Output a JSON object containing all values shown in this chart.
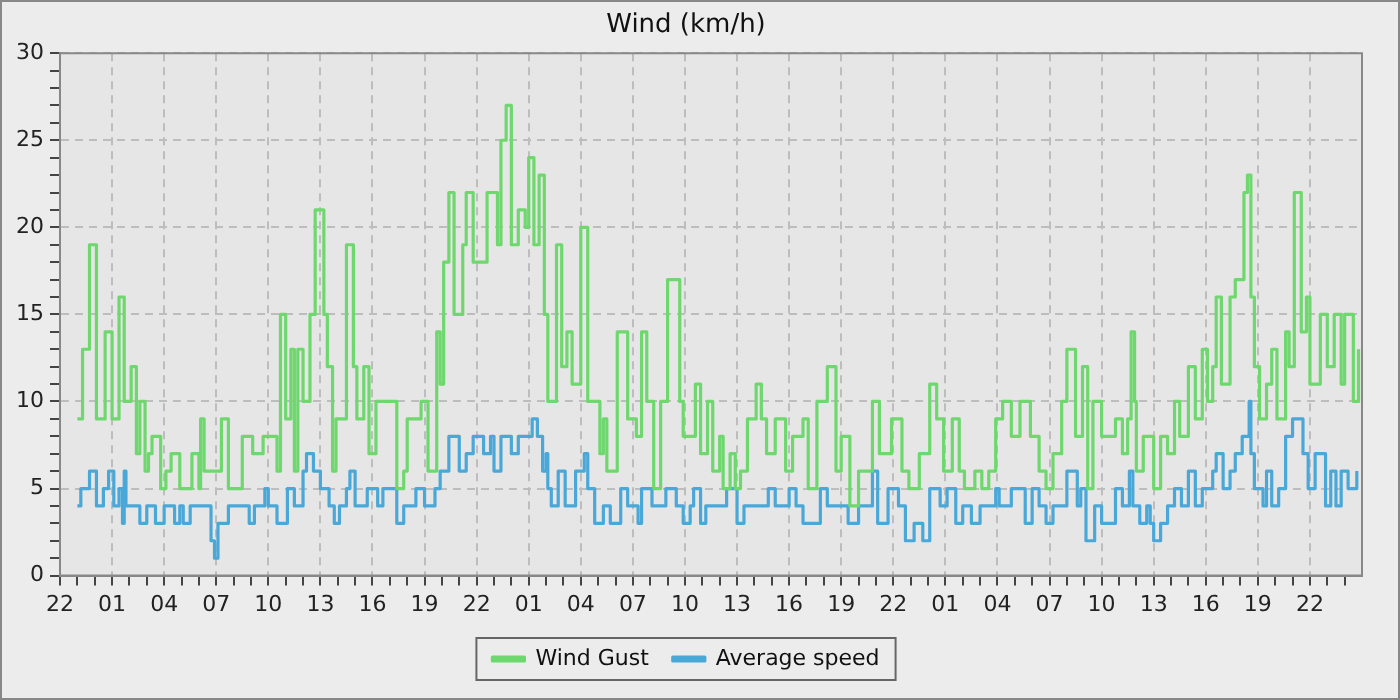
{
  "chart_data": {
    "type": "step",
    "title": "Wind (km/h)",
    "xlim": [
      "--01-01T22:00",
      "--01-05T01:00"
    ],
    "xticks": [
      {
        "value": "--01-01T22:00",
        "label": "22"
      },
      {
        "value": "--01-01T23:00",
        "label": null
      },
      {
        "value": "--01-02T00:00",
        "label": null
      },
      {
        "value": "--01-02T01:00",
        "label": "01"
      },
      {
        "value": "--01-02T02:00",
        "label": null
      },
      {
        "value": "--01-02T03:00",
        "label": null
      },
      {
        "value": "--01-02T04:00",
        "label": "04"
      },
      {
        "value": "--01-02T05:00",
        "label": null
      },
      {
        "value": "--01-02T06:00",
        "label": null
      },
      {
        "value": "--01-02T07:00",
        "label": "07"
      },
      {
        "value": "--01-02T08:00",
        "label": null
      },
      {
        "value": "--01-02T09:00",
        "label": null
      },
      {
        "value": "--01-02T10:00",
        "label": "10"
      },
      {
        "value": "--01-02T11:00",
        "label": null
      },
      {
        "value": "--01-02T12:00",
        "label": null
      },
      {
        "value": "--01-02T13:00",
        "label": "13"
      },
      {
        "value": "--01-02T14:00",
        "label": null
      },
      {
        "value": "--01-02T15:00",
        "label": null
      },
      {
        "value": "--01-02T16:00",
        "label": "16"
      },
      {
        "value": "--01-02T17:00",
        "label": null
      },
      {
        "value": "--01-02T18:00",
        "label": null
      },
      {
        "value": "--01-02T19:00",
        "label": "19"
      },
      {
        "value": "--01-02T20:00",
        "label": null
      },
      {
        "value": "--01-02T21:00",
        "label": null
      },
      {
        "value": "--01-02T22:00",
        "label": "22"
      },
      {
        "value": "--01-02T23:00",
        "label": null
      },
      {
        "value": "--01-03T00:00",
        "label": null
      },
      {
        "value": "--01-03T01:00",
        "label": "01"
      },
      {
        "value": "--01-03T02:00",
        "label": null
      },
      {
        "value": "--01-03T03:00",
        "label": null
      },
      {
        "value": "--01-03T04:00",
        "label": "04"
      },
      {
        "value": "--01-03T05:00",
        "label": null
      },
      {
        "value": "--01-03T06:00",
        "label": null
      },
      {
        "value": "--01-03T07:00",
        "label": "07"
      },
      {
        "value": "--01-03T08:00",
        "label": null
      },
      {
        "value": "--01-03T09:00",
        "label": null
      },
      {
        "value": "--01-03T10:00",
        "label": "10"
      },
      {
        "value": "--01-03T11:00",
        "label": null
      },
      {
        "value": "--01-03T12:00",
        "label": null
      },
      {
        "value": "--01-03T13:00",
        "label": "13"
      },
      {
        "value": "--01-03T14:00",
        "label": null
      },
      {
        "value": "--01-03T15:00",
        "label": null
      },
      {
        "value": "--01-03T16:00",
        "label": "16"
      },
      {
        "value": "--01-03T17:00",
        "label": null
      },
      {
        "value": "--01-03T18:00",
        "label": null
      },
      {
        "value": "--01-03T19:00",
        "label": "19"
      },
      {
        "value": "--01-03T20:00",
        "label": null
      },
      {
        "value": "--01-03T21:00",
        "label": null
      },
      {
        "value": "--01-03T22:00",
        "label": "22"
      },
      {
        "value": "--01-03T23:00",
        "label": null
      },
      {
        "value": "--01-04T00:00",
        "label": null
      },
      {
        "value": "--01-04T01:00",
        "label": "01"
      },
      {
        "value": "--01-04T02:00",
        "label": null
      },
      {
        "value": "--01-04T03:00",
        "label": null
      },
      {
        "value": "--01-04T04:00",
        "label": "04"
      },
      {
        "value": "--01-04T05:00",
        "label": null
      },
      {
        "value": "--01-04T06:00",
        "label": null
      },
      {
        "value": "--01-04T07:00",
        "label": "07"
      },
      {
        "value": "--01-04T08:00",
        "label": null
      },
      {
        "value": "--01-04T09:00",
        "label": null
      },
      {
        "value": "--01-04T10:00",
        "label": "10"
      },
      {
        "value": "--01-04T11:00",
        "label": null
      },
      {
        "value": "--01-04T12:00",
        "label": null
      },
      {
        "value": "--01-04T13:00",
        "label": "13"
      },
      {
        "value": "--01-04T14:00",
        "label": null
      },
      {
        "value": "--01-04T15:00",
        "label": null
      },
      {
        "value": "--01-04T16:00",
        "label": "16"
      },
      {
        "value": "--01-04T17:00",
        "label": null
      },
      {
        "value": "--01-04T18:00",
        "label": null
      },
      {
        "value": "--01-04T19:00",
        "label": "19"
      },
      {
        "value": "--01-04T20:00",
        "label": null
      },
      {
        "value": "--01-04T21:00",
        "label": null
      },
      {
        "value": "--01-04T22:00",
        "label": "22"
      },
      {
        "value": "--01-04T23:00",
        "label": null
      },
      {
        "value": "--01-05T00:00",
        "label": null
      }
    ],
    "ylim": [
      0,
      30
    ],
    "yticks": [
      0,
      {
        "value": 1,
        "label": null
      },
      {
        "value": 2,
        "label": null
      },
      {
        "value": 3,
        "label": null
      },
      {
        "value": 4,
        "label": null
      },
      5,
      {
        "value": 6,
        "label": null
      },
      {
        "value": 7,
        "label": null
      },
      {
        "value": 8,
        "label": null
      },
      {
        "value": 9,
        "label": null
      },
      10,
      {
        "value": 11,
        "label": null
      },
      {
        "value": 12,
        "label": null
      },
      {
        "value": 13,
        "label": null
      },
      {
        "value": 14,
        "label": null
      },
      15,
      {
        "value": 16,
        "label": null
      },
      {
        "value": 17,
        "label": null
      },
      {
        "value": 18,
        "label": null
      },
      {
        "value": 19,
        "label": null
      },
      20,
      {
        "value": 21,
        "label": null
      },
      {
        "value": 22,
        "label": null
      },
      {
        "value": 23,
        "label": null
      },
      {
        "value": 24,
        "label": null
      },
      25,
      {
        "value": 26,
        "label": null
      },
      {
        "value": 27,
        "label": null
      },
      {
        "value": 28,
        "label": null
      },
      {
        "value": 29,
        "label": null
      },
      30
    ],
    "grid": true,
    "legend": "bottom",
    "marker": "none",
    "line_style": "solid",
    "series": [
      {
        "name": "Wind Gust",
        "color": "#6ed86e",
        "x": [
          "--01-01T23:00",
          "--01-01T23:18",
          "--01-01T23:42",
          "--01-02T00:06",
          "--01-02T00:36",
          "--01-02T01:00",
          "--01-02T01:24",
          "--01-02T01:42",
          "--01-02T02:06",
          "--01-02T02:24",
          "--01-02T02:36",
          "--01-02T02:54",
          "--01-02T03:06",
          "--01-02T03:18",
          "--01-02T03:48",
          "--01-02T04:06",
          "--01-02T04:24",
          "--01-02T04:54",
          "--01-02T05:36",
          "--01-02T06:00",
          "--01-02T06:06",
          "--01-02T06:18",
          "--01-02T07:18",
          "--01-02T07:42",
          "--01-02T08:30",
          "--01-02T09:06",
          "--01-02T09:42",
          "--01-02T10:30",
          "--01-02T10:42",
          "--01-02T11:00",
          "--01-02T11:18",
          "--01-02T11:30",
          "--01-02T11:42",
          "--01-02T12:00",
          "--01-02T12:24",
          "--01-02T12:42",
          "--01-02T13:12",
          "--01-02T13:24",
          "--01-02T13:42",
          "--01-02T13:54",
          "--01-02T14:30",
          "--01-02T14:54",
          "--01-02T15:06",
          "--01-02T15:30",
          "--01-02T15:48",
          "--01-02T16:12",
          "--01-02T17:24",
          "--01-02T17:48",
          "--01-02T18:00",
          "--01-02T18:48",
          "--01-02T19:12",
          "--01-02T19:42",
          "--01-02T19:54",
          "--01-02T20:06",
          "--01-02T20:24",
          "--01-02T20:42",
          "--01-02T21:12",
          "--01-02T21:24",
          "--01-02T21:48",
          "--01-02T22:36",
          "--01-02T23:12",
          "--01-02T23:24",
          "--01-02T23:42",
          "--01-03T00:00",
          "--01-03T00:24",
          "--01-03T00:48",
          "--01-03T01:00",
          "--01-03T01:18",
          "--01-03T01:36",
          "--01-03T01:54",
          "--01-03T02:06",
          "--01-03T02:36",
          "--01-03T02:54",
          "--01-03T03:12",
          "--01-03T03:30",
          "--01-03T04:00",
          "--01-03T04:24",
          "--01-03T05:06",
          "--01-03T05:18",
          "--01-03T05:30",
          "--01-03T06:06",
          "--01-03T06:42",
          "--01-03T07:12",
          "--01-03T07:30",
          "--01-03T07:48",
          "--01-03T08:12",
          "--01-03T08:36",
          "--01-03T09:00",
          "--01-03T09:42",
          "--01-03T09:54",
          "--01-03T10:36",
          "--01-03T10:54",
          "--01-03T11:18",
          "--01-03T11:36",
          "--01-03T12:00",
          "--01-03T12:12",
          "--01-03T12:36",
          "--01-03T12:54",
          "--01-03T13:12",
          "--01-03T13:36",
          "--01-03T14:06",
          "--01-03T14:24",
          "--01-03T14:42",
          "--01-03T15:12",
          "--01-03T15:48",
          "--01-03T16:12",
          "--01-03T16:48",
          "--01-03T17:06",
          "--01-03T17:36",
          "--01-03T18:12",
          "--01-03T18:42",
          "--01-03T19:00",
          "--01-03T19:30",
          "--01-03T20:00",
          "--01-03T20:48",
          "--01-03T21:12",
          "--01-03T21:54",
          "--01-03T22:30",
          "--01-03T22:54",
          "--01-03T23:30",
          "--01-04T00:06",
          "--01-04T00:30",
          "--01-04T00:54",
          "--01-04T01:24",
          "--01-04T01:48",
          "--01-04T02:06",
          "--01-04T02:42",
          "--01-04T03:06",
          "--01-04T03:30",
          "--01-04T03:54",
          "--01-04T04:18",
          "--01-04T04:48",
          "--01-04T05:18",
          "--01-04T05:54",
          "--01-04T06:24",
          "--01-04T06:48",
          "--01-04T07:12",
          "--01-04T07:42",
          "--01-04T08:00",
          "--01-04T08:30",
          "--01-04T08:54",
          "--01-04T09:12",
          "--01-04T09:30",
          "--01-04T10:00",
          "--01-04T10:48",
          "--01-04T11:12",
          "--01-04T11:30",
          "--01-04T11:42",
          "--01-04T11:54",
          "--01-04T12:00",
          "--01-04T12:24",
          "--01-04T13:00",
          "--01-04T13:24",
          "--01-04T13:48",
          "--01-04T14:12",
          "--01-04T14:30",
          "--01-04T15:00",
          "--01-04T15:24",
          "--01-04T15:48",
          "--01-04T16:06",
          "--01-04T16:24",
          "--01-04T16:36",
          "--01-04T16:54",
          "--01-04T17:24",
          "--01-04T17:42",
          "--01-04T18:12",
          "--01-04T18:24",
          "--01-04T18:36",
          "--01-04T18:48",
          "--01-04T19:06",
          "--01-04T19:30",
          "--01-04T19:48",
          "--01-04T20:06",
          "--01-04T20:36",
          "--01-04T20:48",
          "--01-04T21:06",
          "--01-04T21:30",
          "--01-04T21:48",
          "--01-04T22:00",
          "--01-04T22:36",
          "--01-04T23:00",
          "--01-04T23:24",
          "--01-04T23:48",
          "--01-05T00:00",
          "--01-05T00:30",
          "--01-05T00:48"
        ],
        "values": [
          9,
          13,
          19,
          9,
          14,
          9,
          16,
          10,
          12,
          7,
          10,
          6,
          7,
          8,
          5,
          6,
          7,
          5,
          7,
          5,
          9,
          6,
          9,
          5,
          8,
          7,
          8,
          6,
          15,
          9,
          13,
          6,
          13,
          10,
          15,
          21,
          15,
          12,
          6,
          9,
          19,
          12,
          9,
          12,
          7,
          10,
          5,
          6,
          9,
          10,
          6,
          14,
          11,
          18,
          22,
          15,
          19,
          22,
          18,
          22,
          19,
          25,
          27,
          19,
          21,
          20,
          24,
          19,
          23,
          15,
          10,
          19,
          12,
          14,
          11,
          20,
          10,
          7,
          9,
          6,
          14,
          9,
          8,
          14,
          10,
          5,
          10,
          17,
          10,
          8,
          11,
          7,
          10,
          6,
          8,
          5,
          7,
          5,
          6,
          9,
          11,
          9,
          7,
          9,
          6,
          8,
          9,
          5,
          10,
          12,
          6,
          8,
          4,
          6,
          10,
          7,
          9,
          6,
          5,
          7,
          11,
          9,
          6,
          9,
          6,
          5,
          6,
          5,
          6,
          9,
          10,
          8,
          10,
          8,
          6,
          5,
          7,
          10,
          13,
          8,
          12,
          5,
          10,
          8,
          9,
          7,
          9,
          14,
          10,
          6,
          8,
          5,
          8,
          7,
          10,
          8,
          12,
          9,
          13,
          10,
          12,
          16,
          11,
          16,
          17,
          22,
          23,
          16,
          12,
          9,
          11,
          13,
          9,
          14,
          12,
          22,
          14,
          16,
          11,
          15,
          12,
          15,
          11,
          15,
          10,
          13
        ]
      },
      {
        "name": "Average speed",
        "color": "#4aa8d8",
        "x": [
          "--01-01T23:00",
          "--01-01T23:12",
          "--01-01T23:42",
          "--01-02T00:06",
          "--01-02T00:30",
          "--01-02T00:48",
          "--01-02T01:06",
          "--01-02T01:24",
          "--01-02T01:36",
          "--01-02T01:42",
          "--01-02T01:48",
          "--01-02T02:36",
          "--01-02T03:00",
          "--01-02T03:30",
          "--01-02T04:00",
          "--01-02T04:36",
          "--01-02T04:54",
          "--01-02T05:06",
          "--01-02T05:30",
          "--01-02T06:42",
          "--01-02T06:54",
          "--01-02T07:06",
          "--01-02T07:42",
          "--01-02T08:54",
          "--01-02T09:12",
          "--01-02T09:48",
          "--01-02T10:00",
          "--01-02T10:30",
          "--01-02T11:06",
          "--01-02T11:30",
          "--01-02T12:00",
          "--01-02T12:12",
          "--01-02T12:36",
          "--01-02T13:00",
          "--01-02T13:30",
          "--01-02T13:48",
          "--01-02T14:06",
          "--01-02T14:30",
          "--01-02T14:42",
          "--01-02T15:00",
          "--01-02T15:42",
          "--01-02T16:18",
          "--01-02T16:36",
          "--01-02T17:24",
          "--01-02T17:48",
          "--01-02T18:30",
          "--01-02T19:00",
          "--01-02T19:36",
          "--01-02T19:54",
          "--01-02T20:24",
          "--01-02T21:00",
          "--01-02T21:24",
          "--01-02T21:48",
          "--01-02T22:24",
          "--01-02T22:48",
          "--01-02T23:00",
          "--01-02T23:24",
          "--01-03T00:00",
          "--01-03T00:24",
          "--01-03T01:12",
          "--01-03T01:30",
          "--01-03T01:48",
          "--01-03T02:00",
          "--01-03T02:06",
          "--01-03T02:18",
          "--01-03T02:42",
          "--01-03T03:06",
          "--01-03T03:42",
          "--01-03T04:12",
          "--01-03T04:24",
          "--01-03T04:48",
          "--01-03T05:18",
          "--01-03T05:42",
          "--01-03T06:18",
          "--01-03T06:42",
          "--01-03T07:18",
          "--01-03T07:30",
          "--01-03T08:06",
          "--01-03T08:54",
          "--01-03T09:30",
          "--01-03T09:54",
          "--01-03T10:18",
          "--01-03T10:30",
          "--01-03T10:54",
          "--01-03T11:12",
          "--01-03T12:24",
          "--01-03T13:00",
          "--01-03T13:24",
          "--01-03T14:48",
          "--01-03T15:12",
          "--01-03T16:00",
          "--01-03T16:24",
          "--01-03T16:48",
          "--01-03T17:48",
          "--01-03T18:12",
          "--01-03T19:24",
          "--01-03T20:00",
          "--01-03T20:48",
          "--01-03T21:06",
          "--01-03T21:42",
          "--01-03T22:18",
          "--01-03T22:42",
          "--01-03T23:12",
          "--01-03T23:42",
          "--01-04T00:06",
          "--01-04T00:42",
          "--01-04T01:06",
          "--01-04T01:36",
          "--01-04T02:00",
          "--01-04T02:30",
          "--01-04T03:00",
          "--01-04T03:54",
          "--01-04T04:06",
          "--01-04T04:48",
          "--01-04T05:36",
          "--01-04T06:00",
          "--01-04T06:24",
          "--01-04T06:48",
          "--01-04T07:12",
          "--01-04T08:00",
          "--01-04T08:36",
          "--01-04T08:48",
          "--01-04T09:06",
          "--01-04T09:36",
          "--01-04T10:00",
          "--01-04T10:48",
          "--01-04T11:12",
          "--01-04T11:36",
          "--01-04T11:48",
          "--01-04T12:12",
          "--01-04T12:36",
          "--01-04T12:48",
          "--01-04T13:00",
          "--01-04T13:24",
          "--01-04T13:48",
          "--01-04T14:12",
          "--01-04T14:36",
          "--01-04T15:00",
          "--01-04T15:24",
          "--01-04T15:48",
          "--01-04T16:24",
          "--01-04T16:36",
          "--01-04T17:00",
          "--01-04T17:24",
          "--01-04T17:42",
          "--01-04T18:06",
          "--01-04T18:30",
          "--01-04T18:36",
          "--01-04T18:48",
          "--01-04T19:18",
          "--01-04T19:30",
          "--01-04T19:48",
          "--01-04T20:12",
          "--01-04T20:36",
          "--01-04T21:00",
          "--01-04T21:36",
          "--01-04T21:54",
          "--01-04T22:18",
          "--01-04T22:54",
          "--01-04T23:12",
          "--01-04T23:30",
          "--01-04T23:48",
          "--01-05T00:12",
          "--01-05T00:42"
        ],
        "values": [
          4,
          5,
          6,
          4,
          5,
          6,
          4,
          5,
          3,
          6,
          4,
          3,
          4,
          3,
          4,
          3,
          4,
          3,
          4,
          2,
          1,
          3,
          4,
          3,
          4,
          5,
          4,
          3,
          5,
          4,
          6,
          7,
          6,
          5,
          4,
          3,
          4,
          5,
          6,
          4,
          5,
          4,
          5,
          3,
          4,
          5,
          4,
          5,
          6,
          8,
          6,
          7,
          8,
          7,
          8,
          6,
          8,
          7,
          8,
          9,
          8,
          6,
          7,
          5,
          4,
          6,
          4,
          6,
          7,
          5,
          3,
          4,
          3,
          5,
          4,
          3,
          5,
          4,
          5,
          4,
          3,
          4,
          5,
          3,
          4,
          5,
          3,
          4,
          5,
          4,
          5,
          4,
          3,
          5,
          4,
          3,
          4,
          6,
          3,
          5,
          4,
          2,
          3,
          2,
          5,
          4,
          5,
          3,
          4,
          3,
          4,
          5,
          4,
          5,
          3,
          5,
          4,
          3,
          4,
          6,
          4,
          5,
          2,
          4,
          3,
          5,
          4,
          6,
          4,
          3,
          4,
          3,
          2,
          3,
          4,
          5,
          4,
          6,
          4,
          5,
          6,
          7,
          5,
          6,
          7,
          8,
          10,
          7,
          5,
          4,
          6,
          4,
          5,
          8,
          9,
          7,
          5,
          7,
          4,
          6,
          4,
          6,
          5,
          6
        ]
      }
    ]
  }
}
